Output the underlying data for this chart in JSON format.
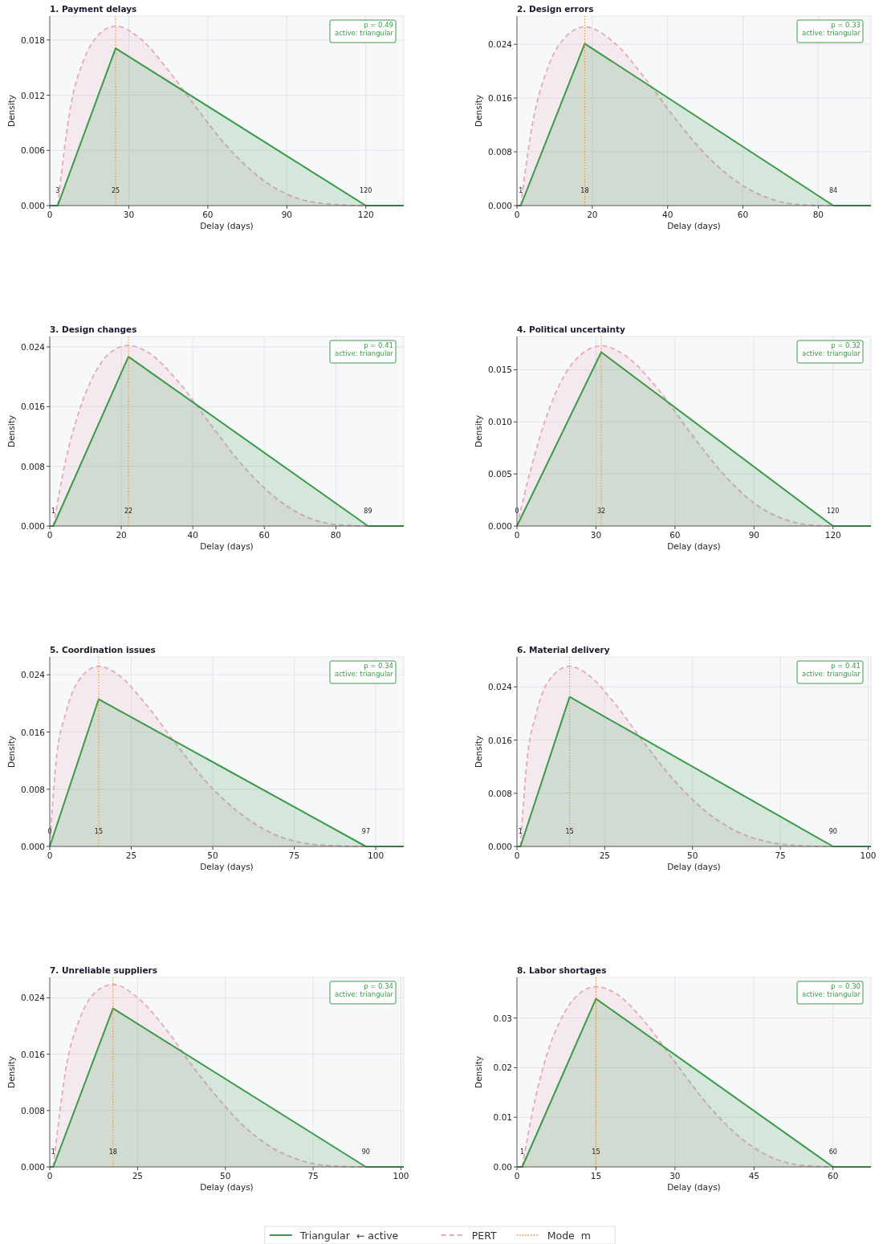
{
  "chart_data": [
    {
      "type": "area",
      "title": "1. Payment delays",
      "xlabel": "Delay (days)",
      "ylabel": "Density",
      "xlim": [
        0,
        134.4
      ],
      "xticks": [
        0,
        30,
        60,
        90,
        120
      ],
      "ylim": [
        0,
        0.0206
      ],
      "yticks": [
        {
          "value": 0,
          "label": "0.000"
        },
        {
          "value": 0.006,
          "label": "0.006"
        },
        {
          "value": 0.012,
          "label": "0.012"
        },
        {
          "value": 0.018,
          "label": "0.018"
        }
      ],
      "grid": true,
      "series": [
        {
          "color": "#e5a9bb",
          "line_style": "dashed",
          "x": [
            3,
            8,
            13,
            18,
            25,
            35,
            45,
            55,
            65,
            75,
            85,
            95,
            105,
            120,
            134.4
          ],
          "values": [
            0,
            0.0109,
            0.0159,
            0.0184,
            0.0195,
            0.018,
            0.0147,
            0.0109,
            0.0072,
            0.0042,
            0.002,
            0.0007,
            0.0002,
            0,
            0
          ]
        },
        {
          "color": "#3a9a48",
          "line_style": "solid",
          "x": [
            0,
            3,
            25,
            120,
            134.4
          ],
          "values": [
            0,
            0,
            0.0171,
            0,
            0
          ]
        }
      ],
      "ref_lines": [
        {
          "axis": "x",
          "value": 25,
          "color": "#f08c1c",
          "line_style": "dotted"
        }
      ],
      "annotations": [
        {
          "text": "3",
          "x": 3,
          "y": 0
        },
        {
          "text": "25",
          "x": 25,
          "y": 0
        },
        {
          "text": "120",
          "x": 120,
          "y": 0
        },
        "p = 0.49",
        "active: triangular"
      ]
    },
    {
      "type": "area",
      "title": "2. Design errors",
      "xlabel": "Delay (days)",
      "ylabel": "Density",
      "xlim": [
        0,
        94
      ],
      "xticks": [
        0,
        20,
        40,
        60,
        80
      ],
      "ylim": [
        0,
        0.0282
      ],
      "yticks": [
        {
          "value": 0,
          "label": "0.000"
        },
        {
          "value": 0.008,
          "label": "0.008"
        },
        {
          "value": 0.016,
          "label": "0.016"
        },
        {
          "value": 0.024,
          "label": "0.024"
        }
      ],
      "grid": true,
      "series": [
        {
          "color": "#e5a9bb",
          "line_style": "dashed",
          "x": [
            1,
            4.3,
            7.6,
            11.8,
            18,
            25.9,
            34.2,
            42.5,
            50.8,
            59.1,
            67.4,
            75.7,
            84,
            94
          ],
          "values": [
            0,
            0.0127,
            0.0196,
            0.0244,
            0.0266,
            0.0242,
            0.0188,
            0.0126,
            0.0072,
            0.0033,
            0.001,
            0.0001,
            0,
            0
          ]
        },
        {
          "color": "#3a9a48",
          "line_style": "solid",
          "x": [
            0,
            1,
            18,
            84,
            94
          ],
          "values": [
            0,
            0,
            0.0241,
            0,
            0
          ]
        }
      ],
      "ref_lines": [
        {
          "axis": "x",
          "value": 18,
          "color": "#f08c1c",
          "line_style": "dotted"
        }
      ],
      "annotations": [
        {
          "text": "1",
          "x": 1,
          "y": 0
        },
        {
          "text": "18",
          "x": 18,
          "y": 0
        },
        {
          "text": "84",
          "x": 84,
          "y": 0
        },
        "p = 0.33",
        "active: triangular"
      ]
    },
    {
      "type": "area",
      "title": "3. Design changes",
      "xlabel": "Delay (days)",
      "ylabel": "Density",
      "xlim": [
        0,
        99
      ],
      "xticks": [
        0,
        20,
        40,
        60,
        80
      ],
      "ylim": [
        0,
        0.0254
      ],
      "yticks": [
        {
          "value": 0,
          "label": "0.000"
        },
        {
          "value": 0.008,
          "label": "0.008"
        },
        {
          "value": 0.016,
          "label": "0.016"
        },
        {
          "value": 0.024,
          "label": "0.024"
        }
      ],
      "grid": true,
      "series": [
        {
          "color": "#e5a9bb",
          "line_style": "dashed",
          "x": [
            1,
            4.5,
            8,
            12.4,
            16.8,
            22,
            27.4,
            36.2,
            45,
            53.8,
            62.6,
            71.4,
            80.2,
            89,
            99
          ],
          "values": [
            0,
            0.0089,
            0.0151,
            0.0203,
            0.0232,
            0.0242,
            0.0233,
            0.0192,
            0.0136,
            0.0082,
            0.004,
            0.0013,
            0.0002,
            0,
            0
          ]
        },
        {
          "color": "#3a9a48",
          "line_style": "solid",
          "x": [
            0,
            1,
            22,
            89,
            99
          ],
          "values": [
            0,
            0,
            0.0227,
            0,
            0
          ]
        }
      ],
      "ref_lines": [
        {
          "axis": "x",
          "value": 22,
          "color": "#f08c1c",
          "line_style": "dotted"
        }
      ],
      "annotations": [
        {
          "text": "1",
          "x": 1,
          "y": 0
        },
        {
          "text": "22",
          "x": 22,
          "y": 0
        },
        {
          "text": "89",
          "x": 89,
          "y": 0
        },
        "p = 0.41",
        "active: triangular"
      ]
    },
    {
      "type": "area",
      "title": "4. Political uncertainty",
      "xlabel": "Delay (days)",
      "ylabel": "Density",
      "xlim": [
        0,
        134.4
      ],
      "xticks": [
        0,
        30,
        60,
        90,
        120
      ],
      "ylim": [
        0,
        0.0182
      ],
      "yticks": [
        {
          "value": 0,
          "label": "0.000"
        },
        {
          "value": 0.005,
          "label": "0.005"
        },
        {
          "value": 0.01,
          "label": "0.010"
        },
        {
          "value": 0.015,
          "label": "0.015"
        }
      ],
      "grid": true,
      "series": [
        {
          "color": "#e5a9bb",
          "line_style": "dashed",
          "x": [
            0,
            4.8,
            9.6,
            15.6,
            24,
            32,
            42,
            54,
            66,
            78,
            90,
            102,
            111.6,
            120,
            134.4
          ],
          "values": [
            0,
            0.005,
            0.0093,
            0.0133,
            0.0164,
            0.0173,
            0.0162,
            0.013,
            0.0089,
            0.0051,
            0.0022,
            0.0006,
            0.0001,
            0,
            0
          ]
        },
        {
          "color": "#3a9a48",
          "line_style": "solid",
          "x": [
            0,
            32,
            120,
            134.4
          ],
          "values": [
            0,
            0.0167,
            0,
            0
          ]
        }
      ],
      "ref_lines": [
        {
          "axis": "x",
          "value": 32,
          "color": "#f08c1c",
          "line_style": "dotted"
        }
      ],
      "annotations": [
        {
          "text": "0",
          "x": 0,
          "y": 0
        },
        {
          "text": "32",
          "x": 32,
          "y": 0
        },
        {
          "text": "120",
          "x": 120,
          "y": 0
        },
        "p = 0.32",
        "active: triangular"
      ]
    },
    {
      "type": "area",
      "title": "5. Coordination issues",
      "xlabel": "Delay (days)",
      "ylabel": "Density",
      "xlim": [
        0,
        108.6
      ],
      "xticks": [
        0,
        25,
        50,
        75,
        100
      ],
      "ylim": [
        0,
        0.0265
      ],
      "yticks": [
        {
          "value": 0,
          "label": "0.000"
        },
        {
          "value": 0.008,
          "label": "0.008"
        },
        {
          "value": 0.016,
          "label": "0.016"
        },
        {
          "value": 0.024,
          "label": "0.024"
        }
      ],
      "grid": true,
      "series": [
        {
          "color": "#e5a9bb",
          "line_style": "dashed",
          "x": [
            0,
            1.9,
            4.9,
            8.7,
            15,
            21.3,
            29.1,
            38.8,
            48.5,
            58.2,
            67.9,
            77.6,
            87.3,
            97,
            108.6
          ],
          "values": [
            0,
            0.0117,
            0.0186,
            0.0231,
            0.0252,
            0.0239,
            0.0201,
            0.0143,
            0.0088,
            0.0047,
            0.0019,
            0.0005,
            0.0001,
            0,
            0
          ]
        },
        {
          "color": "#3a9a48",
          "line_style": "solid",
          "x": [
            0,
            15,
            97,
            108.6
          ],
          "values": [
            0,
            0.0206,
            0,
            0
          ]
        }
      ],
      "ref_lines": [
        {
          "axis": "x",
          "value": 15,
          "color": "#f08c1c",
          "line_style": "dotted"
        }
      ],
      "annotations": [
        {
          "text": "0",
          "x": 0,
          "y": 0
        },
        {
          "text": "15",
          "x": 15,
          "y": 0
        },
        {
          "text": "97",
          "x": 97,
          "y": 0
        },
        "p = 0.34",
        "active: triangular"
      ]
    },
    {
      "type": "area",
      "title": "6. Material delivery",
      "xlabel": "Delay (days)",
      "ylabel": "Density",
      "xlim": [
        0,
        100.8
      ],
      "xticks": [
        0,
        25,
        50,
        75,
        100
      ],
      "ylim": [
        0,
        0.0285
      ],
      "yticks": [
        {
          "value": 0,
          "label": "0.000"
        },
        {
          "value": 0.008,
          "label": "0.008"
        },
        {
          "value": 0.016,
          "label": "0.016"
        },
        {
          "value": 0.024,
          "label": "0.024"
        }
      ],
      "grid": true,
      "series": [
        {
          "color": "#e5a9bb",
          "line_style": "dashed",
          "x": [
            1,
            2.8,
            5.5,
            9,
            15,
            20.6,
            27.7,
            36.6,
            45.5,
            54.4,
            63.3,
            72.2,
            81.1,
            90,
            100.8
          ],
          "values": [
            0,
            0.0126,
            0.02,
            0.0249,
            0.0271,
            0.0257,
            0.0216,
            0.0153,
            0.0095,
            0.005,
            0.0021,
            0.0006,
            0.0001,
            0,
            0
          ]
        },
        {
          "color": "#3a9a48",
          "line_style": "solid",
          "x": [
            0,
            1,
            15,
            90,
            100.8
          ],
          "values": [
            0,
            0,
            0.0225,
            0,
            0
          ]
        }
      ],
      "ref_lines": [
        {
          "axis": "x",
          "value": 15,
          "color": "#f08c1c",
          "line_style": "dotted"
        }
      ],
      "annotations": [
        {
          "text": "1",
          "x": 1,
          "y": 0
        },
        {
          "text": "15",
          "x": 15,
          "y": 0
        },
        {
          "text": "90",
          "x": 90,
          "y": 0
        },
        "p = 0.41",
        "active: triangular"
      ]
    },
    {
      "type": "area",
      "title": "7. Unreliable suppliers",
      "xlabel": "Delay (days)",
      "ylabel": "Density",
      "xlim": [
        0,
        100.8
      ],
      "xticks": [
        0,
        25,
        50,
        75,
        100
      ],
      "ylim": [
        0,
        0.0269
      ],
      "yticks": [
        {
          "value": 0,
          "label": "0.000"
        },
        {
          "value": 0.008,
          "label": "0.008"
        },
        {
          "value": 0.016,
          "label": "0.016"
        },
        {
          "value": 0.024,
          "label": "0.024"
        }
      ],
      "grid": true,
      "series": [
        {
          "color": "#e5a9bb",
          "line_style": "dashed",
          "x": [
            1,
            4.8,
            8.6,
            12.4,
            18,
            25.3,
            33,
            40.5,
            48.2,
            55.7,
            63.4,
            71,
            78.6,
            90,
            100.8
          ],
          "values": [
            0,
            0.0145,
            0.0211,
            0.0245,
            0.0259,
            0.0239,
            0.0196,
            0.0144,
            0.0096,
            0.0056,
            0.0027,
            0.001,
            0.0002,
            0,
            0
          ]
        },
        {
          "color": "#3a9a48",
          "line_style": "solid",
          "x": [
            0,
            1,
            18,
            90,
            100.8
          ],
          "values": [
            0,
            0,
            0.0225,
            0,
            0
          ]
        }
      ],
      "ref_lines": [
        {
          "axis": "x",
          "value": 18,
          "color": "#f08c1c",
          "line_style": "dotted"
        }
      ],
      "annotations": [
        {
          "text": "1",
          "x": 1,
          "y": 0
        },
        {
          "text": "18",
          "x": 18,
          "y": 0
        },
        {
          "text": "90",
          "x": 90,
          "y": 0
        },
        "p = 0.34",
        "active: triangular"
      ]
    },
    {
      "type": "area",
      "title": "8. Labor shortages",
      "xlabel": "Delay (days)",
      "ylabel": "Density",
      "xlim": [
        0,
        67.2
      ],
      "xticks": [
        0,
        15,
        30,
        45,
        60
      ],
      "ylim": [
        0,
        0.0382
      ],
      "yticks": [
        {
          "value": 0,
          "label": "0.00"
        },
        {
          "value": 0.01,
          "label": "0.01"
        },
        {
          "value": 0.02,
          "label": "0.02"
        },
        {
          "value": 0.03,
          "label": "0.03"
        }
      ],
      "grid": true,
      "legend": "bottom",
      "series": [
        {
          "name": "PERT",
          "color": "#e5a9bb",
          "line_style": "dashed",
          "x": [
            1,
            3.4,
            5.7,
            8.7,
            11.6,
            15,
            18.7,
            24.6,
            30.5,
            36.4,
            42.3,
            48.2,
            54.1,
            60,
            67.2
          ],
          "values": [
            0,
            0.0134,
            0.0227,
            0.0305,
            0.0347,
            0.0363,
            0.035,
            0.0288,
            0.0204,
            0.0123,
            0.006,
            0.002,
            0.0003,
            0,
            0
          ]
        },
        {
          "name": "Triangular  ← active",
          "color": "#3a9a48",
          "line_style": "solid",
          "x": [
            0,
            1,
            15,
            60,
            67.2
          ],
          "values": [
            0,
            0,
            0.0339,
            0,
            0
          ]
        }
      ],
      "ref_lines": [
        {
          "axis": "x",
          "value": 15,
          "color": "#f08c1c",
          "line_style": "dotted",
          "label": "Mode  m"
        }
      ],
      "annotations": [
        {
          "text": "1",
          "x": 1,
          "y": 0
        },
        {
          "text": "15",
          "x": 15,
          "y": 0
        },
        {
          "text": "60",
          "x": 60,
          "y": 0
        },
        "p = 0.30",
        "active: triangular"
      ]
    }
  ]
}
